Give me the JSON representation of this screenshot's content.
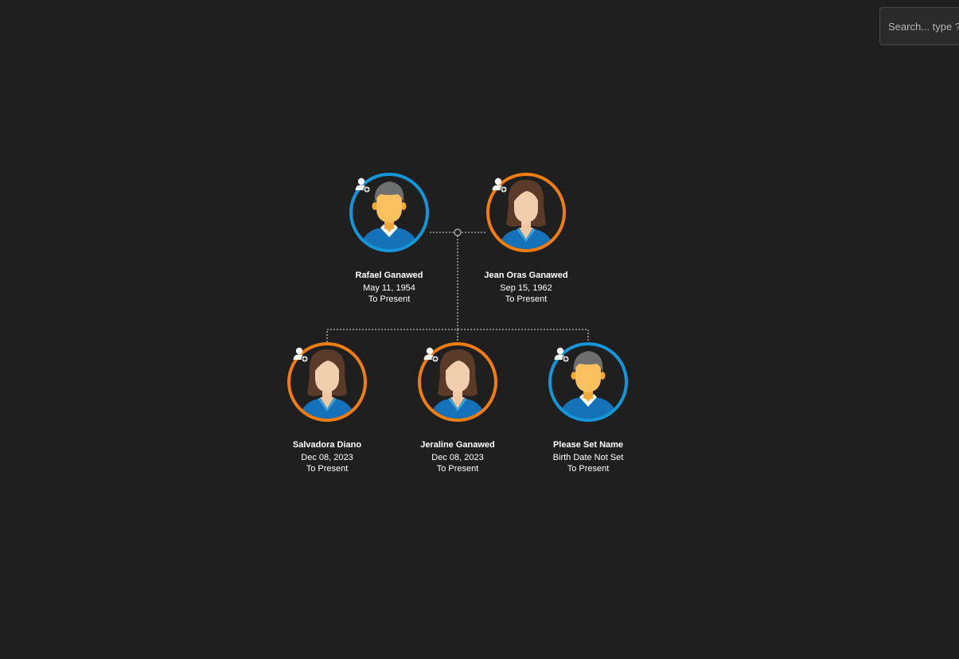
{
  "search": {
    "placeholder": "Search... type ?"
  },
  "colors": {
    "background": "#1f1f1f",
    "male_ring": "#1596d8",
    "female_ring": "#ef7d12",
    "connector": "#bbbbbb"
  },
  "people": [
    {
      "id": "rafael",
      "gender": "male",
      "avatar_icon": "male-avatar-icon",
      "name": "Rafael Ganawed",
      "date": "May 11, 1954",
      "status": "To Present"
    },
    {
      "id": "jean",
      "gender": "female",
      "avatar_icon": "female-avatar-icon",
      "name": "Jean Oras Ganawed",
      "date": "Sep 15, 1962",
      "status": "To Present"
    },
    {
      "id": "salvadora",
      "gender": "female",
      "avatar_icon": "female-avatar-icon",
      "name": "Salvadora Diano",
      "date": "Dec 08, 2023",
      "status": "To Present"
    },
    {
      "id": "jeraline",
      "gender": "female",
      "avatar_icon": "female-avatar-icon",
      "name": "Jeraline Ganawed",
      "date": "Dec 08, 2023",
      "status": "To Present"
    },
    {
      "id": "unnamed",
      "gender": "male",
      "avatar_icon": "male-avatar-icon",
      "name": "Please Set Name",
      "date": "Birth Date Not Set",
      "status": "To Present"
    }
  ]
}
